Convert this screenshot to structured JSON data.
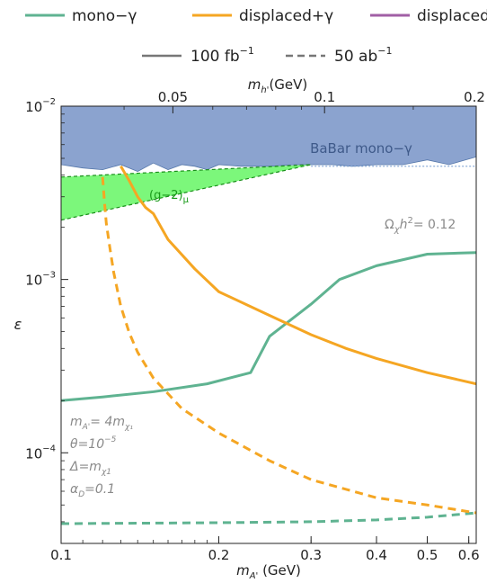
{
  "chart_data": {
    "type": "line",
    "xlabel": "m_A' (GeV)",
    "ylabel": "ε",
    "top_xlabel": "m_h'(GeV)",
    "xscale": "log",
    "yscale": "log",
    "xlim": [
      0.1,
      0.62
    ],
    "ylim": [
      3e-05,
      0.01
    ],
    "x_ticks": [
      {
        "v": 0.1,
        "label": "0.1"
      },
      {
        "v": 0.2,
        "label": "0.2"
      },
      {
        "v": 0.3,
        "label": "0.3"
      },
      {
        "v": 0.4,
        "label": "0.4"
      },
      {
        "v": 0.5,
        "label": "0.5"
      },
      {
        "v": 0.6,
        "label": "0.6"
      }
    ],
    "top_ticks": [
      {
        "v": 0.05,
        "label": "0.05"
      },
      {
        "v": 0.1,
        "label": "0.1"
      },
      {
        "v": 0.2,
        "label": "0.2"
      }
    ],
    "top_axis_range": [
      0.03,
      0.2
    ],
    "y_ticks": [
      {
        "v": 0.01,
        "base": "10",
        "exp": "−2"
      },
      {
        "v": 0.001,
        "base": "10",
        "exp": "−3"
      },
      {
        "v": 0.0001,
        "base": "10",
        "exp": "−4"
      }
    ],
    "legend": {
      "placement": "top",
      "items": [
        {
          "label": "mono−γ",
          "color": "#5fb391",
          "dash": false
        },
        {
          "label": "displaced+γ",
          "color": "#f5a623",
          "dash": false
        },
        {
          "label": "displaced",
          "color": "#a15fa5",
          "dash": false
        }
      ],
      "styles": [
        {
          "label": "100 fb",
          "sup": "−1",
          "dash": false
        },
        {
          "label": "50 ab",
          "sup": "−1",
          "dash": true
        }
      ]
    },
    "regions": [
      {
        "name": "BaBar mono−γ",
        "label": "BaBar mono−γ",
        "color": "#8ba3cf",
        "upper": 0.01,
        "lower_x": [
          0.1,
          0.11,
          0.12,
          0.13,
          0.14,
          0.15,
          0.16,
          0.17,
          0.18,
          0.19,
          0.2,
          0.22,
          0.25,
          0.28,
          0.3,
          0.33,
          0.36,
          0.4,
          0.45,
          0.5,
          0.55,
          0.62
        ],
        "lower_y": [
          0.0046,
          0.0044,
          0.0043,
          0.0046,
          0.0042,
          0.0047,
          0.0043,
          0.0046,
          0.0045,
          0.0043,
          0.0046,
          0.0045,
          0.0045,
          0.0046,
          0.0046,
          0.0046,
          0.0045,
          0.0046,
          0.0046,
          0.0049,
          0.0046,
          0.0051
        ]
      },
      {
        "name": "(g−2)_μ",
        "label": "(g−2)",
        "label_sub": "μ",
        "color": "#7cf77b",
        "edge_color": "#1a8f1a",
        "x": [
          0.1,
          0.3
        ],
        "upper": [
          0.0039,
          0.0046
        ],
        "lower": [
          0.0022,
          0.0046
        ]
      }
    ],
    "relic_line": {
      "label_pre": "Ω",
      "label_sub": "χ",
      "label_mid": "h",
      "label_sup": "2",
      "label_post": "= 0.12",
      "y": 0.0045,
      "color": "#7fa3d4"
    },
    "series": [
      {
        "name": "mono−γ 100 fb−1",
        "color": "#5fb391",
        "dash": false,
        "x": [
          0.1,
          0.12,
          0.15,
          0.19,
          0.23,
          0.25,
          0.3,
          0.34,
          0.4,
          0.5,
          0.62
        ],
        "y": [
          0.0002,
          0.00021,
          0.000225,
          0.00025,
          0.00029,
          0.00047,
          0.00072,
          0.001,
          0.0012,
          0.0014,
          0.00143
        ]
      },
      {
        "name": "mono−γ 50 ab−1",
        "color": "#5fb391",
        "dash": true,
        "x": [
          0.1,
          0.2,
          0.3,
          0.4,
          0.5,
          0.62
        ],
        "y": [
          3.9e-05,
          3.95e-05,
          4e-05,
          4.1e-05,
          4.25e-05,
          4.5e-05
        ]
      },
      {
        "name": "displaced+γ 100 fb−1",
        "color": "#f5a623",
        "dash": false,
        "x": [
          0.13,
          0.135,
          0.14,
          0.145,
          0.15,
          0.16,
          0.18,
          0.2,
          0.25,
          0.3,
          0.35,
          0.4,
          0.5,
          0.62
        ],
        "y": [
          0.0045,
          0.0037,
          0.003,
          0.0026,
          0.0024,
          0.0017,
          0.00115,
          0.00085,
          0.00062,
          0.00048,
          0.0004,
          0.00035,
          0.00029,
          0.00025
        ]
      },
      {
        "name": "displaced+γ 50 ab−1",
        "color": "#f5a623",
        "dash": true,
        "x": [
          0.12,
          0.121,
          0.122,
          0.124,
          0.126,
          0.13,
          0.135,
          0.14,
          0.15,
          0.17,
          0.2,
          0.25,
          0.3,
          0.4,
          0.5,
          0.62
        ],
        "y": [
          0.0039,
          0.0028,
          0.0021,
          0.0015,
          0.0011,
          0.0007,
          0.00049,
          0.00038,
          0.00027,
          0.00018,
          0.00013,
          9e-05,
          7e-05,
          5.5e-05,
          5e-05,
          4.5e-05
        ]
      }
    ],
    "annotations": {
      "params": [
        {
          "pre": "m",
          "sub": "A'",
          "mid": "= 4m",
          "sub2": "χ₁"
        },
        {
          "pre": "θ=10",
          "sup": "−5"
        },
        {
          "pre": "Δ=m",
          "sub": "χ1"
        },
        {
          "pre": "α",
          "sub": "D",
          "mid": "=0.1"
        }
      ],
      "color": "#8a8a8a"
    }
  }
}
